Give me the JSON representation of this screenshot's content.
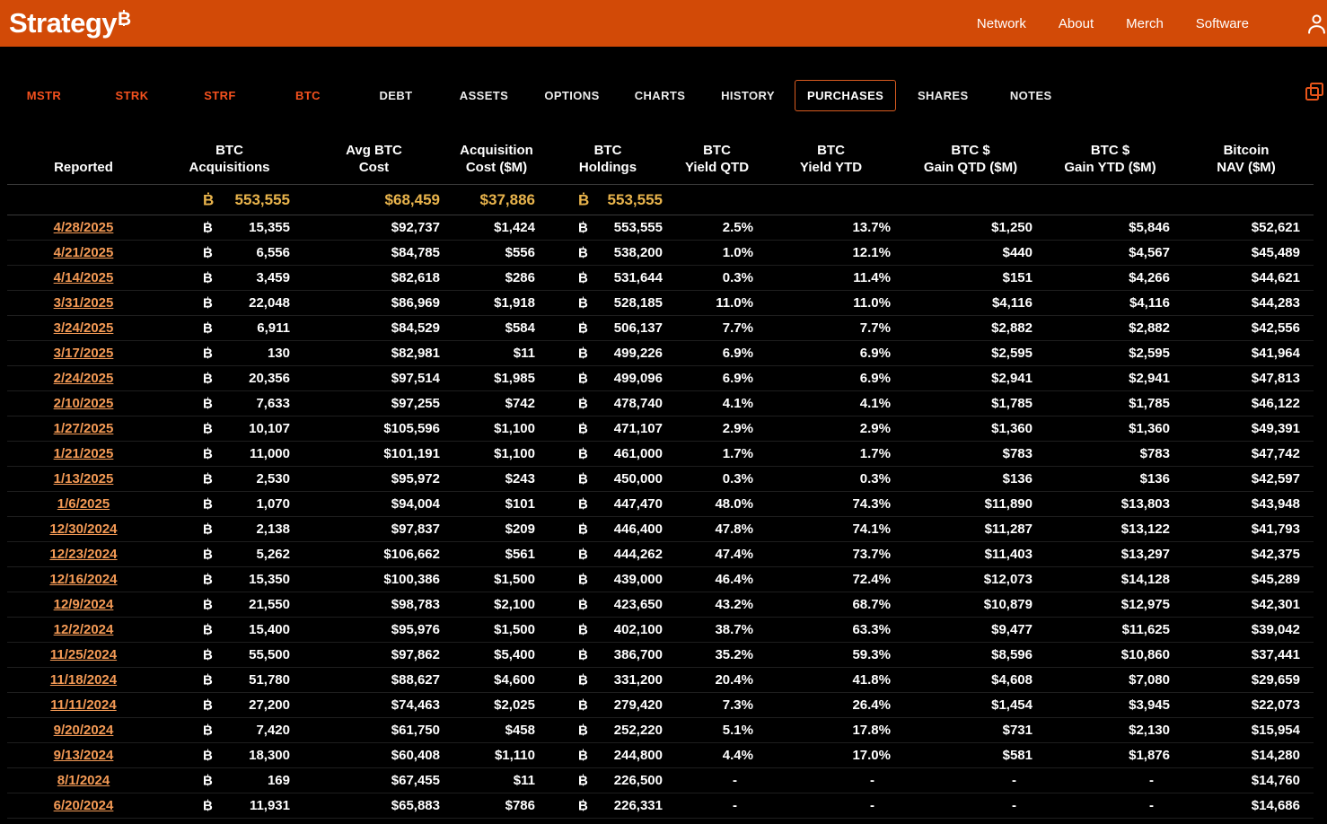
{
  "colors": {
    "topbar": "#d24a07",
    "background": "#000000",
    "ticker_tab": "#f4511e",
    "active_tab_border": "#d95b20",
    "date_link": "#f49a55",
    "summary_value": "#e9b44c"
  },
  "topbar": {
    "logo_text": "Strategy",
    "logo_btc_symbol": "₿",
    "nav": [
      {
        "label": "Network"
      },
      {
        "label": "About"
      },
      {
        "label": "Merch"
      },
      {
        "label": "Software"
      }
    ],
    "account_icon": "person-icon"
  },
  "tabbar": {
    "ticker_tabs": [
      {
        "label": "MSTR"
      },
      {
        "label": "STRK"
      },
      {
        "label": "STRF"
      },
      {
        "label": "BTC"
      }
    ],
    "page_tabs": [
      {
        "label": "DEBT",
        "active": false
      },
      {
        "label": "ASSETS",
        "active": false
      },
      {
        "label": "OPTIONS",
        "active": false
      },
      {
        "label": "CHARTS",
        "active": false
      },
      {
        "label": "HISTORY",
        "active": false
      },
      {
        "label": "PURCHASES",
        "active": true
      },
      {
        "label": "SHARES",
        "active": false
      },
      {
        "label": "NOTES",
        "active": false
      }
    ],
    "copy_icon": "copy-icon"
  },
  "table": {
    "btc_symbol": "₿",
    "columns": [
      {
        "key": "reported",
        "line1": "",
        "line2": "Reported"
      },
      {
        "key": "btc-acquisitions",
        "line1": "BTC",
        "line2": "Acquisitions"
      },
      {
        "key": "avg-btc-cost",
        "line1": "Avg BTC",
        "line2": "Cost"
      },
      {
        "key": "acquisition-cost",
        "line1": "Acquisition",
        "line2": "Cost ($M)"
      },
      {
        "key": "btc-holdings",
        "line1": "BTC",
        "line2": "Holdings"
      },
      {
        "key": "btc-yield-qtd",
        "line1": "BTC",
        "line2": "Yield QTD"
      },
      {
        "key": "btc-yield-ytd",
        "line1": "BTC",
        "line2": "Yield YTD"
      },
      {
        "key": "btc-gain-qtd",
        "line1": "BTC $",
        "line2": "Gain QTD ($M)"
      },
      {
        "key": "btc-gain-ytd",
        "line1": "BTC $",
        "line2": "Gain YTD ($M)"
      },
      {
        "key": "bitcoin-nav",
        "line1": "Bitcoin",
        "line2": "NAV ($M)"
      }
    ],
    "summary": {
      "acquisitions": "553,555",
      "avg_cost": "$68,459",
      "acq_cost": "$37,886",
      "holdings": "553,555"
    },
    "rows": [
      {
        "date": "4/28/2025",
        "acquisitions": "15,355",
        "avg_cost": "$92,737",
        "acq_cost": "$1,424",
        "holdings": "553,555",
        "yield_qtd": "2.5%",
        "yield_ytd": "13.7%",
        "gain_qtd": "$1,250",
        "gain_ytd": "$5,846",
        "nav": "$52,621"
      },
      {
        "date": "4/21/2025",
        "acquisitions": "6,556",
        "avg_cost": "$84,785",
        "acq_cost": "$556",
        "holdings": "538,200",
        "yield_qtd": "1.0%",
        "yield_ytd": "12.1%",
        "gain_qtd": "$440",
        "gain_ytd": "$4,567",
        "nav": "$45,489"
      },
      {
        "date": "4/14/2025",
        "acquisitions": "3,459",
        "avg_cost": "$82,618",
        "acq_cost": "$286",
        "holdings": "531,644",
        "yield_qtd": "0.3%",
        "yield_ytd": "11.4%",
        "gain_qtd": "$151",
        "gain_ytd": "$4,266",
        "nav": "$44,621"
      },
      {
        "date": "3/31/2025",
        "acquisitions": "22,048",
        "avg_cost": "$86,969",
        "acq_cost": "$1,918",
        "holdings": "528,185",
        "yield_qtd": "11.0%",
        "yield_ytd": "11.0%",
        "gain_qtd": "$4,116",
        "gain_ytd": "$4,116",
        "nav": "$44,283"
      },
      {
        "date": "3/24/2025",
        "acquisitions": "6,911",
        "avg_cost": "$84,529",
        "acq_cost": "$584",
        "holdings": "506,137",
        "yield_qtd": "7.7%",
        "yield_ytd": "7.7%",
        "gain_qtd": "$2,882",
        "gain_ytd": "$2,882",
        "nav": "$42,556"
      },
      {
        "date": "3/17/2025",
        "acquisitions": "130",
        "avg_cost": "$82,981",
        "acq_cost": "$11",
        "holdings": "499,226",
        "yield_qtd": "6.9%",
        "yield_ytd": "6.9%",
        "gain_qtd": "$2,595",
        "gain_ytd": "$2,595",
        "nav": "$41,964"
      },
      {
        "date": "2/24/2025",
        "acquisitions": "20,356",
        "avg_cost": "$97,514",
        "acq_cost": "$1,985",
        "holdings": "499,096",
        "yield_qtd": "6.9%",
        "yield_ytd": "6.9%",
        "gain_qtd": "$2,941",
        "gain_ytd": "$2,941",
        "nav": "$47,813"
      },
      {
        "date": "2/10/2025",
        "acquisitions": "7,633",
        "avg_cost": "$97,255",
        "acq_cost": "$742",
        "holdings": "478,740",
        "yield_qtd": "4.1%",
        "yield_ytd": "4.1%",
        "gain_qtd": "$1,785",
        "gain_ytd": "$1,785",
        "nav": "$46,122"
      },
      {
        "date": "1/27/2025",
        "acquisitions": "10,107",
        "avg_cost": "$105,596",
        "acq_cost": "$1,100",
        "holdings": "471,107",
        "yield_qtd": "2.9%",
        "yield_ytd": "2.9%",
        "gain_qtd": "$1,360",
        "gain_ytd": "$1,360",
        "nav": "$49,391"
      },
      {
        "date": "1/21/2025",
        "acquisitions": "11,000",
        "avg_cost": "$101,191",
        "acq_cost": "$1,100",
        "holdings": "461,000",
        "yield_qtd": "1.7%",
        "yield_ytd": "1.7%",
        "gain_qtd": "$783",
        "gain_ytd": "$783",
        "nav": "$47,742"
      },
      {
        "date": "1/13/2025",
        "acquisitions": "2,530",
        "avg_cost": "$95,972",
        "acq_cost": "$243",
        "holdings": "450,000",
        "yield_qtd": "0.3%",
        "yield_ytd": "0.3%",
        "gain_qtd": "$136",
        "gain_ytd": "$136",
        "nav": "$42,597"
      },
      {
        "date": "1/6/2025",
        "acquisitions": "1,070",
        "avg_cost": "$94,004",
        "acq_cost": "$101",
        "holdings": "447,470",
        "yield_qtd": "48.0%",
        "yield_ytd": "74.3%",
        "gain_qtd": "$11,890",
        "gain_ytd": "$13,803",
        "nav": "$43,948"
      },
      {
        "date": "12/30/2024",
        "acquisitions": "2,138",
        "avg_cost": "$97,837",
        "acq_cost": "$209",
        "holdings": "446,400",
        "yield_qtd": "47.8%",
        "yield_ytd": "74.1%",
        "gain_qtd": "$11,287",
        "gain_ytd": "$13,122",
        "nav": "$41,793"
      },
      {
        "date": "12/23/2024",
        "acquisitions": "5,262",
        "avg_cost": "$106,662",
        "acq_cost": "$561",
        "holdings": "444,262",
        "yield_qtd": "47.4%",
        "yield_ytd": "73.7%",
        "gain_qtd": "$11,403",
        "gain_ytd": "$13,297",
        "nav": "$42,375"
      },
      {
        "date": "12/16/2024",
        "acquisitions": "15,350",
        "avg_cost": "$100,386",
        "acq_cost": "$1,500",
        "holdings": "439,000",
        "yield_qtd": "46.4%",
        "yield_ytd": "72.4%",
        "gain_qtd": "$12,073",
        "gain_ytd": "$14,128",
        "nav": "$45,289"
      },
      {
        "date": "12/9/2024",
        "acquisitions": "21,550",
        "avg_cost": "$98,783",
        "acq_cost": "$2,100",
        "holdings": "423,650",
        "yield_qtd": "43.2%",
        "yield_ytd": "68.7%",
        "gain_qtd": "$10,879",
        "gain_ytd": "$12,975",
        "nav": "$42,301"
      },
      {
        "date": "12/2/2024",
        "acquisitions": "15,400",
        "avg_cost": "$95,976",
        "acq_cost": "$1,500",
        "holdings": "402,100",
        "yield_qtd": "38.7%",
        "yield_ytd": "63.3%",
        "gain_qtd": "$9,477",
        "gain_ytd": "$11,625",
        "nav": "$39,042"
      },
      {
        "date": "11/25/2024",
        "acquisitions": "55,500",
        "avg_cost": "$97,862",
        "acq_cost": "$5,400",
        "holdings": "386,700",
        "yield_qtd": "35.2%",
        "yield_ytd": "59.3%",
        "gain_qtd": "$8,596",
        "gain_ytd": "$10,860",
        "nav": "$37,441"
      },
      {
        "date": "11/18/2024",
        "acquisitions": "51,780",
        "avg_cost": "$88,627",
        "acq_cost": "$4,600",
        "holdings": "331,200",
        "yield_qtd": "20.4%",
        "yield_ytd": "41.8%",
        "gain_qtd": "$4,608",
        "gain_ytd": "$7,080",
        "nav": "$29,659"
      },
      {
        "date": "11/11/2024",
        "acquisitions": "27,200",
        "avg_cost": "$74,463",
        "acq_cost": "$2,025",
        "holdings": "279,420",
        "yield_qtd": "7.3%",
        "yield_ytd": "26.4%",
        "gain_qtd": "$1,454",
        "gain_ytd": "$3,945",
        "nav": "$22,073"
      },
      {
        "date": "9/20/2024",
        "acquisitions": "7,420",
        "avg_cost": "$61,750",
        "acq_cost": "$458",
        "holdings": "252,220",
        "yield_qtd": "5.1%",
        "yield_ytd": "17.8%",
        "gain_qtd": "$731",
        "gain_ytd": "$2,130",
        "nav": "$15,954"
      },
      {
        "date": "9/13/2024",
        "acquisitions": "18,300",
        "avg_cost": "$60,408",
        "acq_cost": "$1,110",
        "holdings": "244,800",
        "yield_qtd": "4.4%",
        "yield_ytd": "17.0%",
        "gain_qtd": "$581",
        "gain_ytd": "$1,876",
        "nav": "$14,280"
      },
      {
        "date": "8/1/2024",
        "acquisitions": "169",
        "avg_cost": "$67,455",
        "acq_cost": "$11",
        "holdings": "226,500",
        "yield_qtd": "-",
        "yield_ytd": "-",
        "gain_qtd": "-",
        "gain_ytd": "-",
        "nav": "$14,760"
      },
      {
        "date": "6/20/2024",
        "acquisitions": "11,931",
        "avg_cost": "$65,883",
        "acq_cost": "$786",
        "holdings": "226,331",
        "yield_qtd": "-",
        "yield_ytd": "-",
        "gain_qtd": "-",
        "gain_ytd": "-",
        "nav": "$14,686"
      }
    ]
  }
}
